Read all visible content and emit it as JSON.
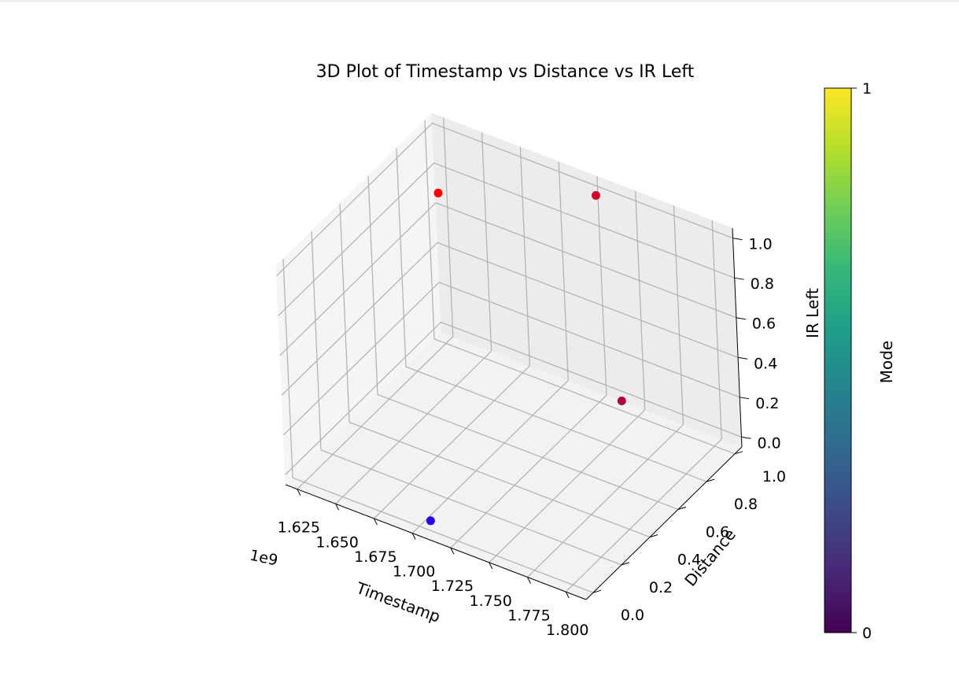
{
  "chart_data": {
    "type": "scatter",
    "title": "3D Plot of Timestamp vs Distance vs IR Left",
    "xlabel": "Timestamp",
    "ylabel": "Distance",
    "zlabel": "IR Left",
    "x_offset_label": "1e9",
    "x_ticks": [
      "1.625",
      "1.650",
      "1.675",
      "1.700",
      "1.725",
      "1.750",
      "1.775",
      "1.800"
    ],
    "y_ticks": [
      "0.0",
      "0.2",
      "0.4",
      "0.6",
      "0.8",
      "1.0"
    ],
    "z_ticks": [
      "0.0",
      "0.2",
      "0.4",
      "0.6",
      "0.8",
      "1.0"
    ],
    "xlim": [
      1.6174,
      1.8132
    ],
    "ylim": [
      -0.05,
      1.05
    ],
    "zlim": [
      -0.05,
      1.05
    ],
    "grid": true,
    "points": [
      {
        "x": 1.7076,
        "y": 0.0,
        "z": 0.0,
        "color": "#2a00f2"
      },
      {
        "x": 1.6535,
        "y": 0.7,
        "z": 1.0,
        "color": "#ff0000"
      },
      {
        "x": 1.7398,
        "y": 1.0,
        "z": 0.0,
        "color": "#b0003e"
      },
      {
        "x": 1.7286,
        "y": 1.0,
        "z": 1.0,
        "color": "#d4002a"
      }
    ],
    "colorbar": {
      "label": "Mode",
      "colormap": "viridis",
      "ticks": [
        "0",
        "1"
      ],
      "colors": [
        "#440154",
        "#482878",
        "#3e4989",
        "#31688e",
        "#26828e",
        "#1f9e89",
        "#35b779",
        "#6ece58",
        "#b5de2b",
        "#fde725"
      ]
    }
  }
}
